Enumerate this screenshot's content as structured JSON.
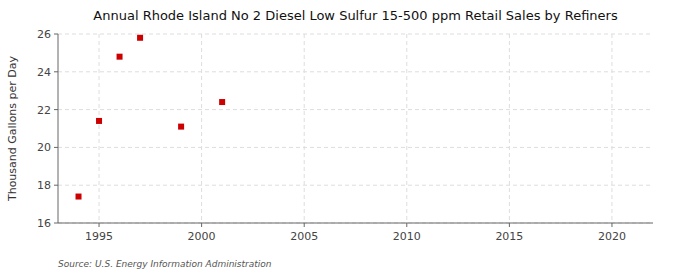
{
  "chart_data": {
    "type": "scatter",
    "title": "Annual Rhode Island No 2 Diesel Low Sulfur 15-500 ppm Retail Sales by Refiners",
    "ylabel": "Thousand Gallons per Day",
    "annotations": [
      "Source: U.S. Energy Information Administration"
    ],
    "x": [
      1994,
      1995,
      1996,
      1997,
      1999,
      2001
    ],
    "values": [
      17.4,
      21.4,
      24.8,
      25.8,
      21.1,
      22.4
    ],
    "color": "#cc0000",
    "marker": "square",
    "xlim": [
      1993,
      2022
    ],
    "ylim": [
      16,
      26
    ],
    "xticks": [
      1995,
      2000,
      2005,
      2010,
      2015,
      2020
    ],
    "yticks": [
      16,
      18,
      20,
      22,
      24,
      26
    ],
    "grid": true
  }
}
